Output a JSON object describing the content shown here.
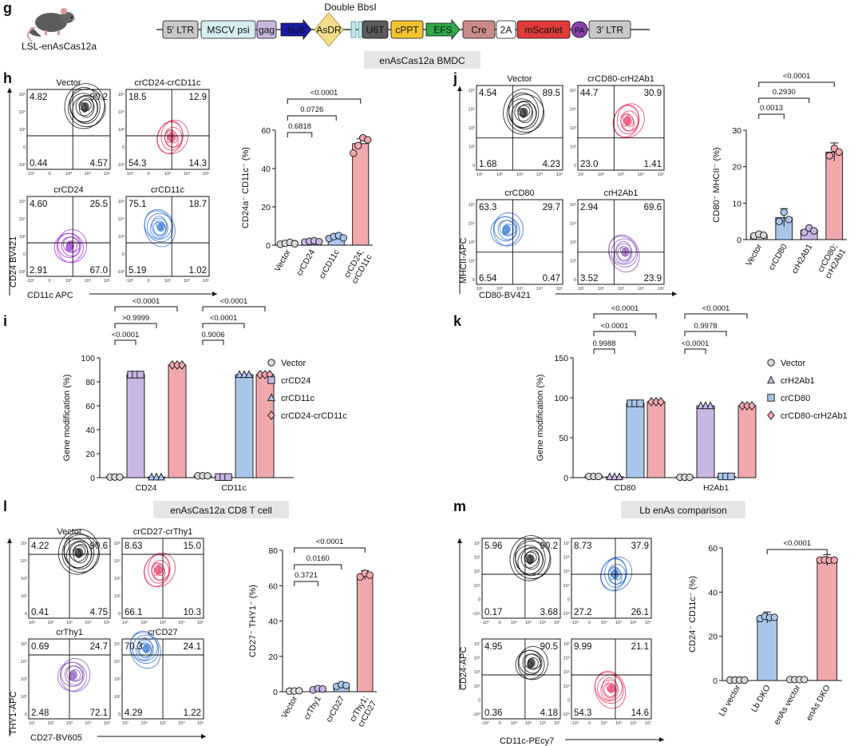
{
  "construct": {
    "mouse_label": "LSL-enAsCas12a",
    "double_label": "Double BbsI",
    "elements": [
      {
        "label": "5′ LTR",
        "color": "#c8c8c8"
      },
      {
        "label": "MSCV psi",
        "color": "#d6eef2"
      },
      {
        "label": "gag",
        "color": "#c9b6de"
      },
      {
        "label": "hU6",
        "color": "#1a1aa6",
        "text_color": "#ffffff",
        "shape": "arrow"
      },
      {
        "label": "AsDR",
        "color": "#f2dc8a",
        "shape": "diamond"
      },
      {
        "label": "",
        "color": "#bfe6ea",
        "shape": "bars"
      },
      {
        "label": "U6T",
        "color": "#5a5a5a",
        "text_color": "#ffffff"
      },
      {
        "label": "cPPT",
        "color": "#f2c330"
      },
      {
        "label": "EFS",
        "color": "#2ea84a",
        "text_color": "#ffffff",
        "shape": "arrow"
      },
      {
        "label": "Cre",
        "color": "#c98a8a"
      },
      {
        "label": "2A",
        "color": "#ffffff"
      },
      {
        "label": "mScarlet",
        "color": "#e03b3b",
        "text_color": "#ffffff"
      },
      {
        "label": "PA",
        "color": "#8a3fb0",
        "text_color": "#ffffff",
        "shape": "circle"
      },
      {
        "label": "3′ LTR",
        "color": "#c8c8c8"
      }
    ]
  },
  "banners": {
    "bmdc": "enAsCas12a BMDC",
    "cd8": "enAsCas12a CD8 T cell",
    "lb": "Lb enAs comparison"
  },
  "panel_letters": {
    "g": "g",
    "h": "h",
    "i": "i",
    "j": "j",
    "k": "k",
    "l": "l",
    "m": "m"
  },
  "flow": {
    "h": {
      "x_label": "CD11c APC",
      "y_label": "CD24 BV421",
      "ticks": [
        "10⁵",
        "10⁴",
        "10³",
        "0",
        "-10³",
        "-10³",
        "0",
        "10³",
        "10⁴",
        "10⁵"
      ],
      "plots": [
        {
          "title": "Vector",
          "q": [
            "4.82",
            "90.2",
            "0.44",
            "4.57"
          ],
          "color": "#111111"
        },
        {
          "title": "crCD24-crCD11c",
          "q": [
            "18.5",
            "12.9",
            "54.3",
            "14.3"
          ],
          "color": "#e8365f"
        },
        {
          "title": "crCD24",
          "q": [
            "4.60",
            "25.5",
            "2.91",
            "67.0"
          ],
          "color": "#9b2fd6"
        },
        {
          "title": "crCD11c",
          "q": [
            "75.1",
            "18.7",
            "5.19",
            "1.02"
          ],
          "color": "#2f6fd0"
        }
      ]
    },
    "j": {
      "x_label": "CD80-BV421",
      "y_label": "MHCII-APC",
      "ticks": [
        "10⁵",
        "10⁴",
        "10³",
        "10²",
        "0",
        "10¹",
        "10²",
        "10³",
        "10⁴",
        "10⁵"
      ],
      "plots": [
        {
          "title": "Vector",
          "q": [
            "4.54",
            "89.5",
            "1.68",
            "4.23"
          ],
          "color": "#111111"
        },
        {
          "title": "crCD80-crH2Ab1",
          "q": [
            "44.7",
            "30.9",
            "23.0",
            "1.41"
          ],
          "color": "#e8365f"
        },
        {
          "title": "crCD80",
          "q": [
            "63.3",
            "29.7",
            "6.54",
            "0.47"
          ],
          "color": "#2f6fd0"
        },
        {
          "title": "crH2Ab1",
          "q": [
            "2.94",
            "69.6",
            "3.52",
            "23.9"
          ],
          "color": "#8a52b8"
        }
      ]
    },
    "l": {
      "x_label": "CD27-BV605",
      "y_label": "THY1-APC",
      "ticks": [
        "10⁵",
        "10⁴",
        "10³",
        "10²",
        "0",
        "10¹",
        "10²",
        "10³",
        "10⁴",
        "10⁵"
      ],
      "plots": [
        {
          "title": "Vector",
          "q": [
            "4.22",
            "90.6",
            "0.41",
            "4.75"
          ],
          "color": "#111111"
        },
        {
          "title": "crCD27-crThy1",
          "q": [
            "8.63",
            "15.0",
            "66.1",
            "10.3"
          ],
          "color": "#e8365f"
        },
        {
          "title": "crThy1",
          "q": [
            "0.69",
            "24.7",
            "2.48",
            "72.1"
          ],
          "color": "#8a52b8"
        },
        {
          "title": "crCD27",
          "q": [
            "70.3",
            "24.1",
            "4.29",
            "1.22"
          ],
          "color": "#2f6fd0"
        }
      ]
    },
    "m": {
      "x_label": "CD11c-PEcy7",
      "y_label": "CD24-APC",
      "ticks": [
        "10⁷",
        "10⁶",
        "10⁵",
        "10⁴",
        "0",
        "-10⁴",
        "-10⁴",
        "0",
        "10⁴",
        "10⁵",
        "10⁶",
        "10⁷"
      ],
      "plots": [
        {
          "title": "",
          "q": [
            "5.96",
            "90.2",
            "0.17",
            "3.68"
          ],
          "color": "#111111"
        },
        {
          "title": "",
          "q": [
            "8.73",
            "37.9",
            "27.2",
            "26.1"
          ],
          "color": "#2f6fd0"
        },
        {
          "title": "",
          "q": [
            "4.95",
            "90.5",
            "0.36",
            "4.18"
          ],
          "color": "#111111"
        },
        {
          "title": "",
          "q": [
            "9.99",
            "21.1",
            "54.3",
            "14.6"
          ],
          "color": "#e8365f"
        }
      ]
    }
  },
  "chart_data": [
    {
      "id": "h",
      "type": "bar",
      "ylabel": "CD24a⁻ CD11c⁻ (%)",
      "ylim": [
        0,
        60
      ],
      "yticks": [
        0,
        20,
        40,
        60
      ],
      "categories": [
        "Vector",
        "crCD24",
        "crCD11c",
        "crCD24;\ncrCD11c"
      ],
      "values": [
        1,
        2,
        4,
        53
      ],
      "points": [
        [
          0.5,
          1,
          1.5,
          0.8
        ],
        [
          1.6,
          2,
          2.3,
          1.8
        ],
        [
          3.5,
          4.5,
          5,
          3.8
        ],
        [
          48,
          52,
          56,
          55
        ]
      ],
      "colors": [
        "#d9d9d9",
        "#c9b6e4",
        "#a9c6ea",
        "#f0a8ac"
      ],
      "pvalues": [
        {
          "text": "<0.0001",
          "from": 0,
          "to": 3
        },
        {
          "text": "0.0726",
          "from": 0,
          "to": 2
        },
        {
          "text": "0.6818",
          "from": 0,
          "to": 1
        }
      ]
    },
    {
      "id": "j",
      "type": "bar",
      "ylabel": "CD80⁻ MHCII⁻ (%)",
      "ylim": [
        0,
        30
      ],
      "yticks": [
        0,
        10,
        20,
        30
      ],
      "categories": [
        "Vector",
        "crCD80",
        "crH2Ab1",
        "crCD80;\ncrH2Ab1"
      ],
      "values": [
        1.3,
        6,
        2.6,
        24
      ],
      "points": [
        [
          1,
          1.5,
          1.2
        ],
        [
          5,
          7.5,
          5.5
        ],
        [
          2,
          3.2,
          2.4
        ],
        [
          23,
          25,
          24
        ]
      ],
      "colors": [
        "#d9d9d9",
        "#a9c6ea",
        "#c9b6e4",
        "#f0a8ac"
      ],
      "pvalues": [
        {
          "text": "<0.0001",
          "from": 0,
          "to": 3
        },
        {
          "text": "0.2930",
          "from": 0,
          "to": 2
        },
        {
          "text": "0.0013",
          "from": 0,
          "to": 1
        }
      ]
    },
    {
      "id": "i",
      "type": "bar",
      "ylabel": "Gene modification (%)",
      "ylim": [
        0,
        100
      ],
      "yticks": [
        0,
        20,
        40,
        60,
        80,
        100
      ],
      "categories": [
        "CD24",
        "CD11c"
      ],
      "series": [
        {
          "name": "Vector",
          "values": [
            0.5,
            1.5
          ],
          "color": "#d9d9d9",
          "marker": "circle"
        },
        {
          "name": "crCD24",
          "values": [
            86,
            0.5
          ],
          "color": "#c9b6e4",
          "marker": "square"
        },
        {
          "name": "crCD11c",
          "values": [
            0.5,
            86
          ],
          "color": "#a9c6ea",
          "marker": "triangle"
        },
        {
          "name": "crCD24-crCD11c",
          "values": [
            94,
            86
          ],
          "color": "#f0a8ac",
          "marker": "diamond"
        }
      ],
      "pvalues": [
        {
          "text": "<0.0001",
          "g": 0,
          "from": 0,
          "to": 3,
          "level": 3
        },
        {
          "text": ">0.9999",
          "g": 0,
          "from": 0,
          "to": 2,
          "level": 2
        },
        {
          "text": "<0.0001",
          "g": 0,
          "from": 0,
          "to": 1,
          "level": 1
        },
        {
          "text": "<0.0001",
          "g": 1,
          "from": 0,
          "to": 3,
          "level": 3
        },
        {
          "text": "<0.0001",
          "g": 1,
          "from": 0,
          "to": 2,
          "level": 2
        },
        {
          "text": "0.9006",
          "g": 1,
          "from": 0,
          "to": 1,
          "level": 1
        }
      ]
    },
    {
      "id": "k",
      "type": "bar",
      "ylabel": "Gene modification (%)",
      "ylim": [
        0,
        150
      ],
      "yticks": [
        0,
        50,
        100,
        150
      ],
      "categories": [
        "CD80",
        "H2Ab1"
      ],
      "series": [
        {
          "name": "Vector",
          "values": [
            1.5,
            0.5
          ],
          "color": "#d9d9d9",
          "marker": "circle"
        },
        {
          "name": "crH2Ab1",
          "values": [
            1,
            90
          ],
          "color": "#c9b6e4",
          "marker": "triangle"
        },
        {
          "name": "crCD80",
          "values": [
            93,
            1.5
          ],
          "color": "#a9c6ea",
          "marker": "square"
        },
        {
          "name": "crCD80-crH2Ab1",
          "values": [
            95,
            90
          ],
          "color": "#f0a8ac",
          "marker": "diamond"
        }
      ],
      "pvalues": [
        {
          "text": "<0.0001",
          "g": 0,
          "from": 0,
          "to": 3,
          "level": 3
        },
        {
          "text": "<0.0001",
          "g": 0,
          "from": 0,
          "to": 2,
          "level": 2
        },
        {
          "text": "0.9988",
          "g": 0,
          "from": 0,
          "to": 1,
          "level": 1
        },
        {
          "text": "<0.0001",
          "g": 1,
          "from": 0,
          "to": 3,
          "level": 3
        },
        {
          "text": "0.9978",
          "g": 1,
          "from": 0,
          "to": 2,
          "level": 2
        },
        {
          "text": "<0.0001",
          "g": 1,
          "from": 0,
          "to": 1,
          "level": 1
        }
      ]
    },
    {
      "id": "l",
      "type": "bar",
      "ylabel": "CD27⁻ THY1⁻ (%)",
      "ylim": [
        0,
        80
      ],
      "yticks": [
        0,
        20,
        40,
        60,
        80
      ],
      "categories": [
        "Vector",
        "crThy1",
        "crCD27",
        "crThy1;\ncrCD27"
      ],
      "values": [
        0.4,
        1.5,
        3.5,
        66
      ],
      "points": [
        [
          0.3,
          0.4,
          0.5
        ],
        [
          1,
          1.8,
          1.5
        ],
        [
          3,
          4,
          3.5
        ],
        [
          65,
          67,
          66
        ]
      ],
      "colors": [
        "#d9d9d9",
        "#c9b6e4",
        "#a9c6ea",
        "#f0a8ac"
      ],
      "pvalues": [
        {
          "text": "<0.0001",
          "from": 0,
          "to": 3
        },
        {
          "text": "0.0160",
          "from": 0,
          "to": 2
        },
        {
          "text": "0.3721",
          "from": 0,
          "to": 1
        }
      ]
    },
    {
      "id": "m",
      "type": "bar",
      "ylabel": "CD24⁻ CD11c⁻ (%)",
      "ylim": [
        0,
        60
      ],
      "yticks": [
        0,
        20,
        40,
        60
      ],
      "categories": [
        "Lb vector",
        "Lb DKO",
        "enAs vector",
        "enAs DKO"
      ],
      "values": [
        0.2,
        28.5,
        0.4,
        54.5
      ],
      "points": [
        [
          0.2,
          0.2,
          0.2,
          0.2
        ],
        [
          28,
          29,
          28.5,
          28.6
        ],
        [
          0.4,
          0.4,
          0.4,
          0.4
        ],
        [
          54.5,
          54.6,
          54.4,
          54.5
        ]
      ],
      "colors": [
        "#d9d9d9",
        "#a9c6ea",
        "#d9d9d9",
        "#f0a8ac"
      ],
      "pvalues": [
        {
          "text": "<0.0001",
          "from": 1,
          "to": 3
        }
      ]
    }
  ]
}
